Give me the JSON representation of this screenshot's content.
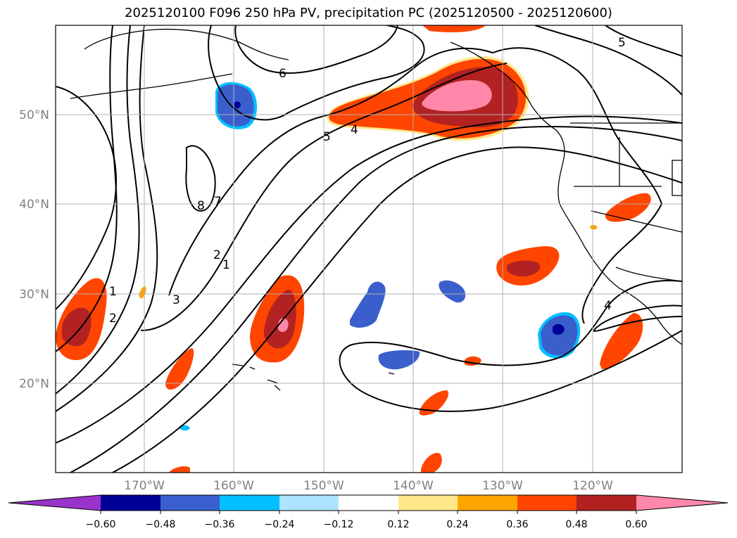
{
  "title": "2025120100 F096 250 hPa PV, precipitation PC (2025120500 - 2025120600)",
  "lat_labels": [
    "50°N",
    "40°N",
    "30°N",
    "20°N"
  ],
  "lon_labels": [
    "170°W",
    "160°W",
    "150°W",
    "140°W",
    "130°W",
    "120°W"
  ],
  "contour_labels": [
    "6",
    "5",
    "4",
    "8",
    "7",
    "2",
    "1",
    "3",
    "1",
    "2",
    "4",
    "5"
  ],
  "colorbar": {
    "ticks": [
      "−0.60",
      "−0.48",
      "−0.36",
      "−0.24",
      "−0.12",
      "0.12",
      "0.24",
      "0.36",
      "0.48",
      "0.60"
    ],
    "colors": [
      "#9933cc",
      "#000099",
      "#3a5fcd",
      "#00bfff",
      "#aee3ff",
      "#ffffff",
      "#ffe88a",
      "#ffa500",
      "#ff4500",
      "#b22222",
      "#ff88aa"
    ]
  },
  "colors": {
    "land_outline": "#000000",
    "grid": "#b0b0b0",
    "pos_light": "#ffe88a",
    "pos_orange": "#ffa500",
    "pos_red": "#ff4500",
    "pos_dark": "#b22222",
    "pos_pink": "#ff88aa",
    "neg_light": "#aee3ff",
    "neg_cyan": "#00bfff",
    "neg_blue": "#3a5fcd",
    "neg_navy": "#000099"
  }
}
